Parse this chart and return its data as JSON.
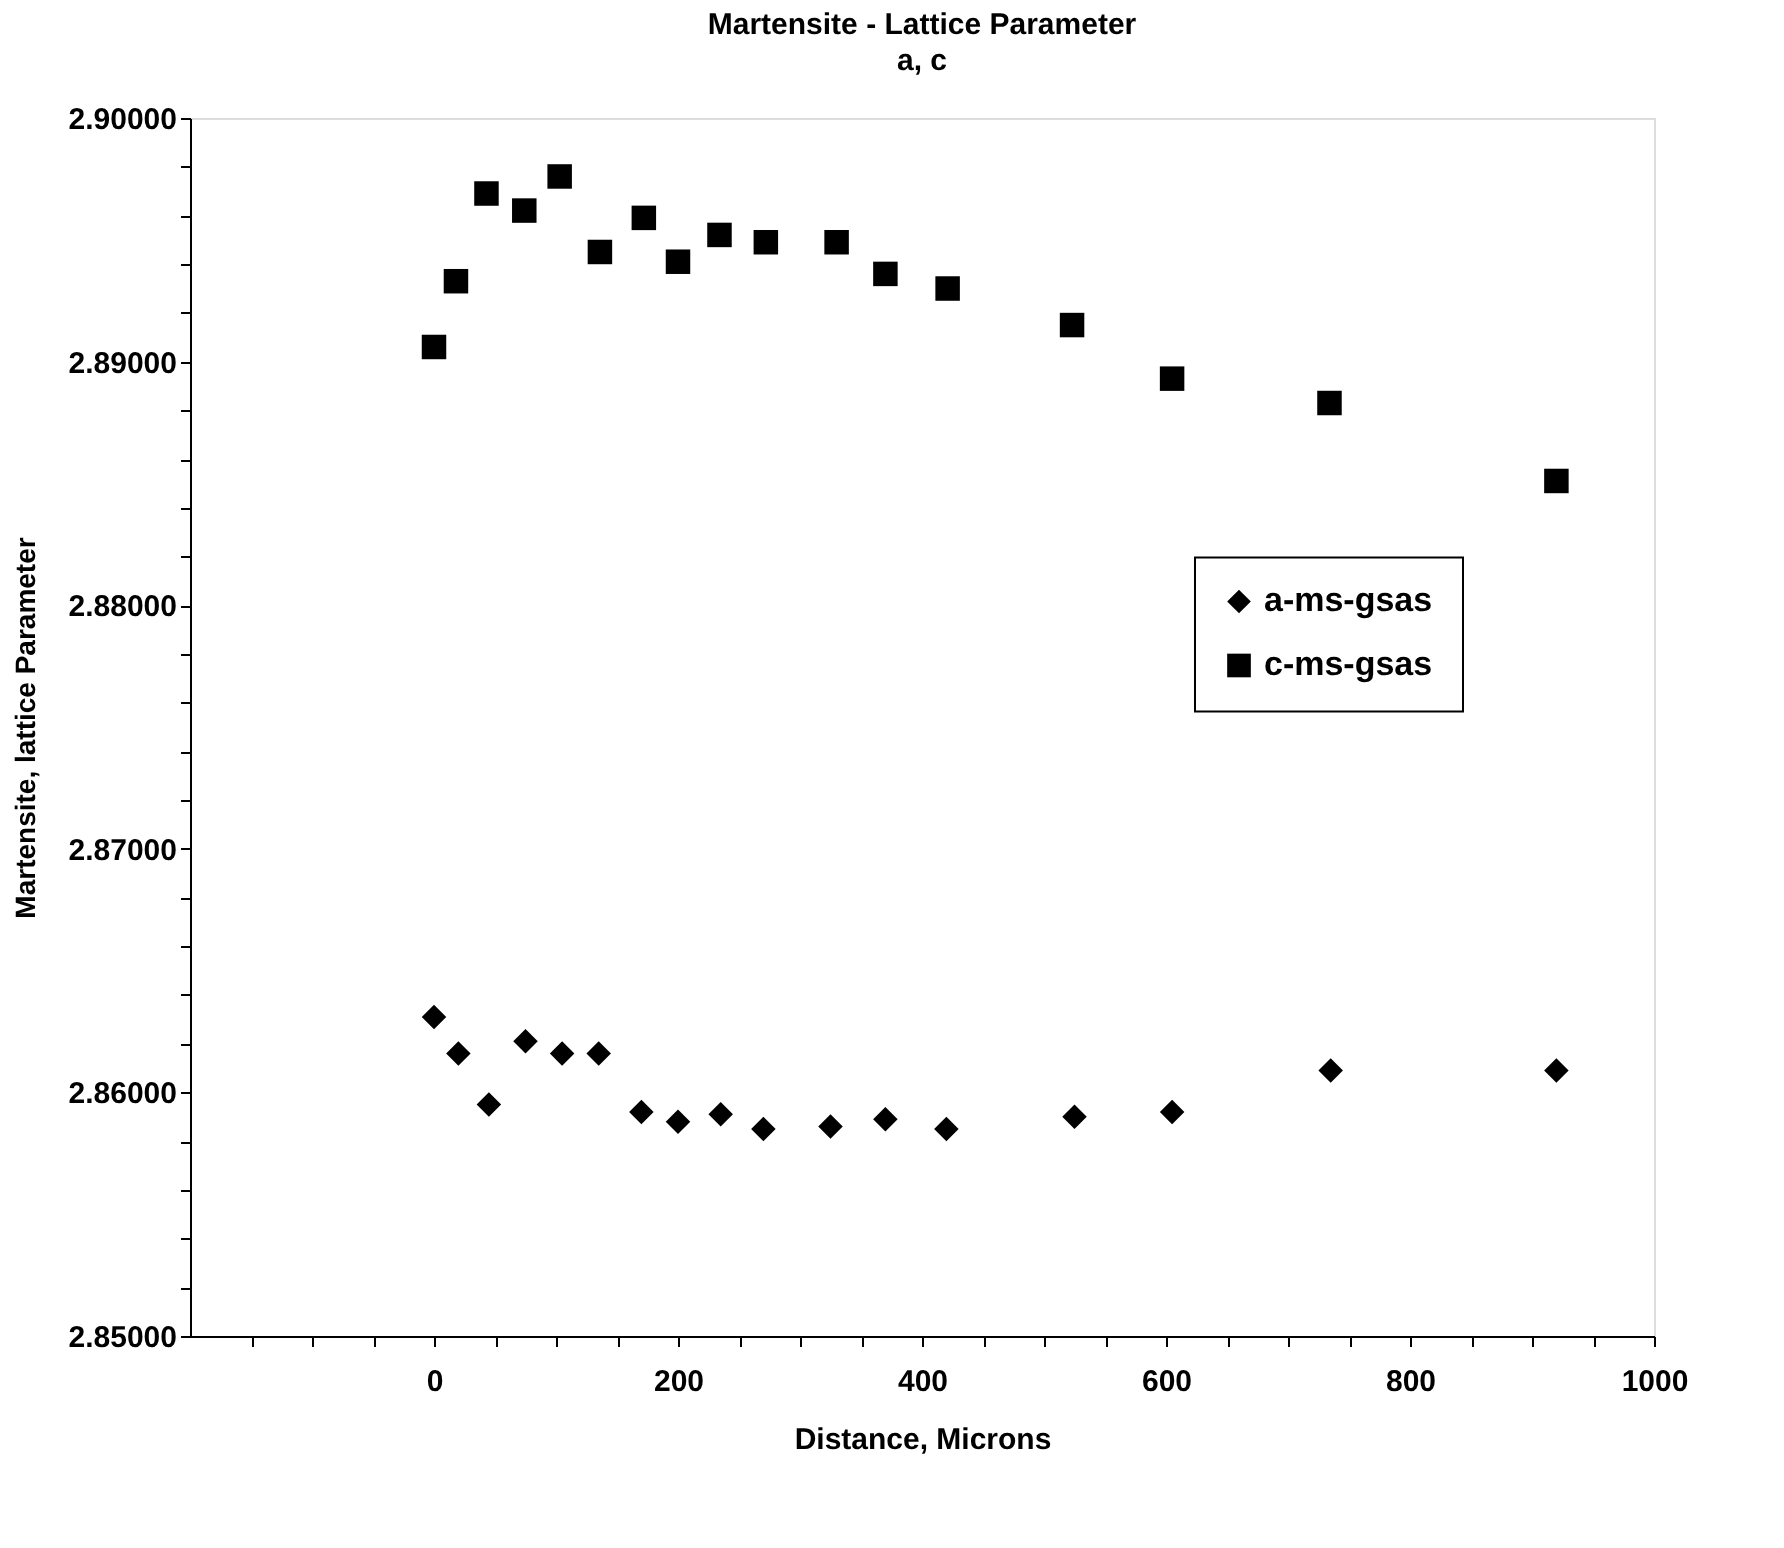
{
  "chart_data": {
    "type": "scatter",
    "title": "Martensite   - Lattice Parameter",
    "subtitle": "a, c",
    "xlabel": "Distance,  Microns",
    "ylabel": "Martensite,  lattice  Parameter",
    "series": [
      {
        "name": "a-ms-gsas",
        "color": "#000000",
        "marker": "diamond",
        "x": [
          0,
          20,
          45,
          75,
          105,
          135,
          170,
          200,
          235,
          270,
          325,
          370,
          420,
          525,
          605,
          735,
          920
        ],
        "values": [
          2.8631,
          2.8616,
          2.8595,
          2.8621,
          2.8616,
          2.8616,
          2.8592,
          2.8588,
          2.8591,
          2.8585,
          2.8586,
          2.8589,
          2.8585,
          2.859,
          2.8592,
          2.8609,
          2.8609
        ]
      },
      {
        "name": "c-ms-gsas",
        "color": "#000000",
        "marker": "square",
        "x": [
          0,
          18,
          43,
          74,
          103,
          136,
          172,
          200,
          234,
          272,
          330,
          370,
          421,
          523,
          605,
          734,
          920
        ],
        "values": [
          2.8906,
          2.8933,
          2.8969,
          2.8962,
          2.8976,
          2.8945,
          2.8959,
          2.8941,
          2.8952,
          2.8949,
          2.8949,
          2.8936,
          2.893,
          2.8915,
          2.8893,
          2.8883,
          2.8851
        ]
      }
    ],
    "xlim": [
      -200,
      1000
    ],
    "xticks": [
      {
        "value": -150,
        "label": null
      },
      {
        "value": -100,
        "label": null
      },
      {
        "value": -50,
        "label": null
      },
      0,
      {
        "value": 50,
        "label": null
      },
      {
        "value": 100,
        "label": null
      },
      {
        "value": 150,
        "label": null
      },
      200,
      {
        "value": 250,
        "label": null
      },
      {
        "value": 300,
        "label": null
      },
      {
        "value": 350,
        "label": null
      },
      400,
      {
        "value": 450,
        "label": null
      },
      {
        "value": 500,
        "label": null
      },
      {
        "value": 550,
        "label": null
      },
      600,
      {
        "value": 650,
        "label": null
      },
      {
        "value": 700,
        "label": null
      },
      {
        "value": 750,
        "label": null
      },
      800,
      {
        "value": 850,
        "label": null
      },
      {
        "value": 900,
        "label": null
      },
      {
        "value": 950,
        "label": null
      },
      1000
    ],
    "ylim": [
      2.85,
      2.9
    ],
    "yticks": [
      {
        "value": 2.85,
        "label": "2.85000"
      },
      {
        "value": 2.852,
        "label": null
      },
      {
        "value": 2.854,
        "label": null
      },
      {
        "value": 2.856,
        "label": null
      },
      {
        "value": 2.858,
        "label": null
      },
      {
        "value": 2.86,
        "label": "2.86000"
      },
      {
        "value": 2.862,
        "label": null
      },
      {
        "value": 2.864,
        "label": null
      },
      {
        "value": 2.866,
        "label": null
      },
      {
        "value": 2.868,
        "label": null
      },
      {
        "value": 2.87,
        "label": "2.87000"
      },
      {
        "value": 2.872,
        "label": null
      },
      {
        "value": 2.874,
        "label": null
      },
      {
        "value": 2.876,
        "label": null
      },
      {
        "value": 2.878,
        "label": null
      },
      {
        "value": 2.88,
        "label": "2.88000"
      },
      {
        "value": 2.882,
        "label": null
      },
      {
        "value": 2.884,
        "label": null
      },
      {
        "value": 2.886,
        "label": null
      },
      {
        "value": 2.888,
        "label": null
      },
      {
        "value": 2.89,
        "label": "2.89000"
      },
      {
        "value": 2.892,
        "label": null
      },
      {
        "value": 2.894,
        "label": null
      },
      {
        "value": 2.896,
        "label": null
      },
      {
        "value": 2.898,
        "label": null
      },
      {
        "value": 2.9,
        "label": "2.90000"
      }
    ],
    "grid": false,
    "legend": "right"
  }
}
